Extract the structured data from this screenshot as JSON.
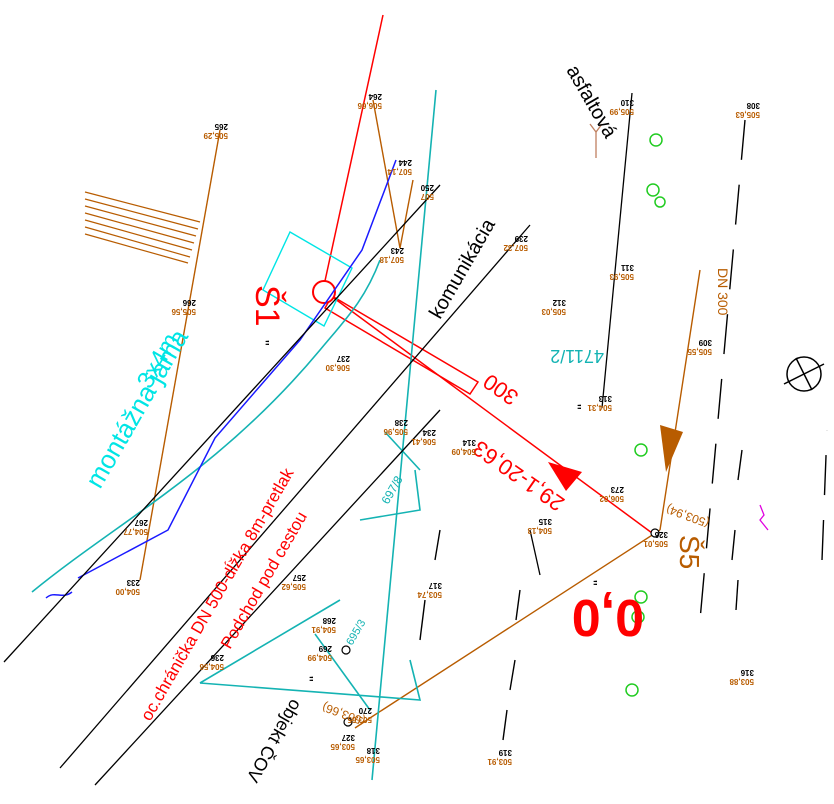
{
  "labels": {
    "s1": "Š1",
    "s5": "Š5",
    "montazna_jama": "montážna jama",
    "montazna_size": "3x4m",
    "asfaltova": "asfaltová",
    "komunikacia": "komunikácia",
    "podchod_line1": "Podchod pod cestou",
    "podchod_line2": "oc.chránička DN 500-dĺžka 8m-pretlak",
    "objekt": "objekt ČOV",
    "pipe_300": "300",
    "pipe_len": "29,1-20,63",
    "parcel_4711": "4711/2",
    "parcel_6978": "697/8",
    "parcel_6953": "695/3",
    "dn300": "DN 300",
    "zero": "0,0",
    "s5_level": "(503,94)",
    "bottom_level": "(503,66)",
    "quote1": "\"",
    "quote2": "\"",
    "quote3": "\"",
    "quote4": "\""
  },
  "points": [
    {
      "id": "265",
      "elev": "505,29"
    },
    {
      "id": "264",
      "elev": "506,66"
    },
    {
      "id": "244",
      "elev": "507,14"
    },
    {
      "id": "250",
      "elev": "507"
    },
    {
      "id": "243",
      "elev": "507,18"
    },
    {
      "id": "266",
      "elev": "505,56"
    },
    {
      "id": "239",
      "elev": "507,32"
    },
    {
      "id": "237",
      "elev": "506,30"
    },
    {
      "id": "238",
      "elev": "505,96"
    },
    {
      "id": "234",
      "elev": "506,41"
    },
    {
      "id": "267",
      "elev": "504,77"
    },
    {
      "id": "233",
      "elev": "504,00"
    },
    {
      "id": "257",
      "elev": "505,62"
    },
    {
      "id": "236",
      "elev": "504,56"
    },
    {
      "id": "268",
      "elev": "504,91"
    },
    {
      "id": "269",
      "elev": "504,99"
    },
    {
      "id": "270",
      "elev": "503,65"
    },
    {
      "id": "318",
      "elev": "503,65"
    },
    {
      "id": "327",
      "elev": "503,65"
    },
    {
      "id": "319",
      "elev": "503,91"
    },
    {
      "id": "317",
      "elev": "503,74"
    },
    {
      "id": "316",
      "elev": "503,88"
    },
    {
      "id": "315",
      "elev": "504,13"
    },
    {
      "id": "314",
      "elev": "504,09"
    },
    {
      "id": "273",
      "elev": "506,02"
    },
    {
      "id": "326",
      "elev": "505,01"
    },
    {
      "id": "313",
      "elev": "504,31"
    },
    {
      "id": "312",
      "elev": "505,03"
    },
    {
      "id": "311",
      "elev": "505,93"
    },
    {
      "id": "310",
      "elev": "505,99"
    },
    {
      "id": "309",
      "elev": "505,55"
    },
    {
      "id": "308",
      "elev": "505,63"
    }
  ]
}
